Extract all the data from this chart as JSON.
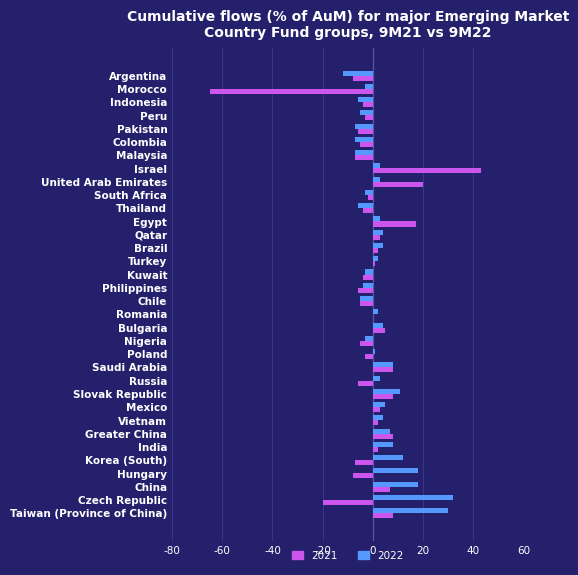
{
  "title": "Cumulative flows (% of AuM) for major Emerging Market\nCountry Fund groups, 9M21 vs 9M22",
  "categories": [
    "Argentina",
    "Morocco",
    "Indonesia",
    "Peru",
    "Pakistan",
    "Colombia",
    "Malaysia",
    "Israel",
    "United Arab Emirates",
    "South Africa",
    "Thailand",
    "Egypt",
    "Qatar",
    "Brazil",
    "Turkey",
    "Kuwait",
    "Philippines",
    "Chile",
    "Romania",
    "Bulgaria",
    "Nigeria",
    "Poland",
    "Saudi Arabia",
    "Russia",
    "Slovak Republic",
    "Mexico",
    "Vietnam",
    "Greater China",
    "India",
    "Korea (South)",
    "Hungary",
    "China",
    "Czech Republic",
    "Taiwan (Province of China)"
  ],
  "values_2021": [
    -8,
    -65,
    -4,
    -3,
    -6,
    -5,
    -7,
    43,
    20,
    -2,
    -4,
    17,
    3,
    2,
    1,
    -4,
    -6,
    -5,
    0,
    5,
    -5,
    -3,
    8,
    -6,
    8,
    3,
    2,
    8,
    2,
    -7,
    -8,
    7,
    -20,
    8
  ],
  "values_2022": [
    -12,
    -3,
    -6,
    -5,
    -7,
    -7,
    -7,
    3,
    3,
    -3,
    -6,
    3,
    4,
    4,
    2,
    -3,
    -4,
    -5,
    2,
    4,
    -3,
    1,
    8,
    3,
    11,
    5,
    4,
    7,
    8,
    12,
    18,
    18,
    32,
    30
  ],
  "color_2021": "#CC55EE",
  "color_2022": "#5599FF",
  "bg_color": "#24206B",
  "text_color": "#FFFFFF",
  "xlim": [
    -80,
    60
  ],
  "xticks": [
    -80,
    -60,
    -40,
    -20,
    0,
    20,
    40,
    60
  ],
  "grid_color": "#3A3590",
  "title_fontsize": 10,
  "tick_fontsize": 7.5,
  "label_fontsize": 7.5
}
